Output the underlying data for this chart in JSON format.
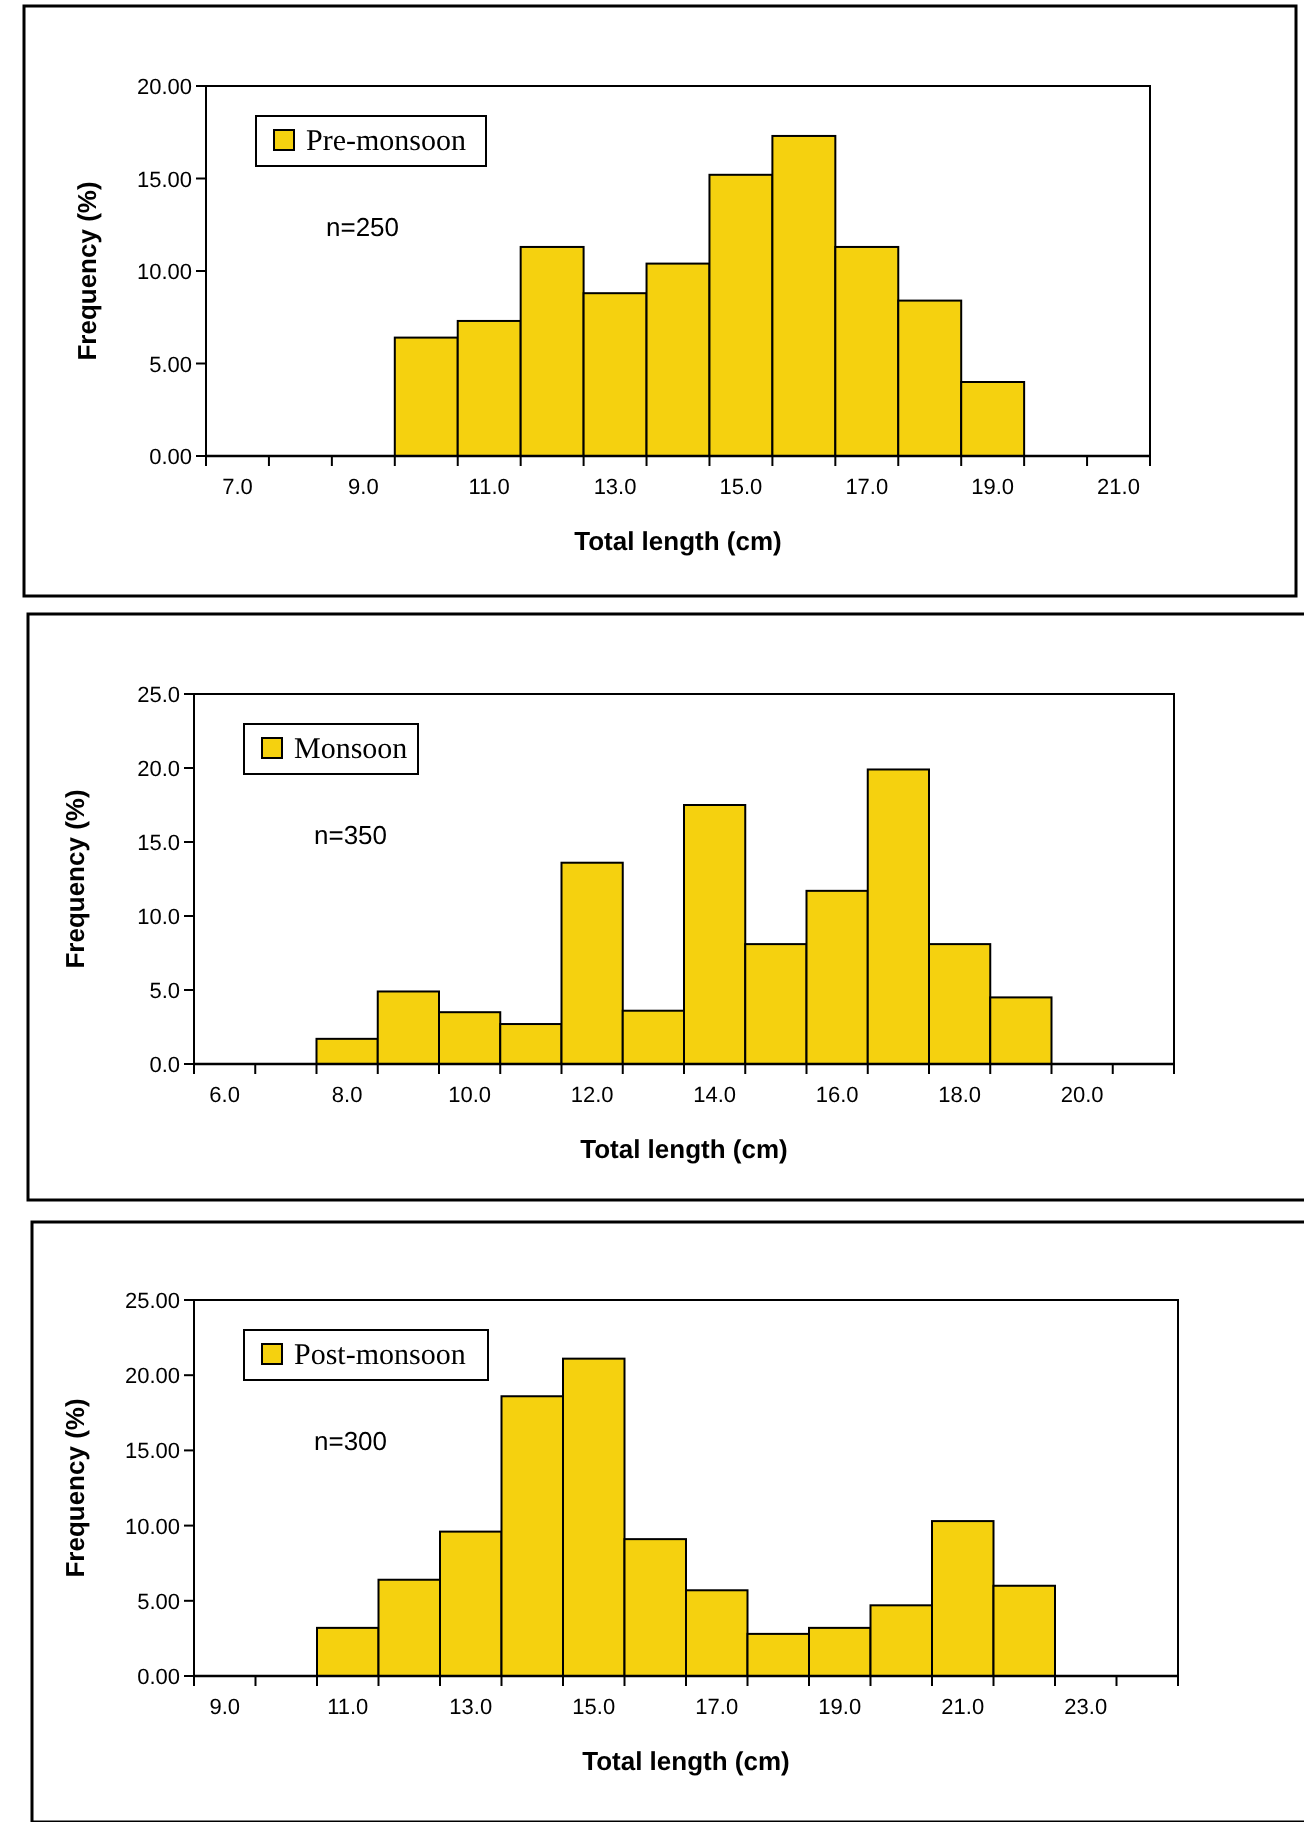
{
  "chart_data": [
    {
      "type": "bar",
      "xlabel": "Total length (cm)",
      "ylabel": "Frequency (%)",
      "annotations": [
        "n=250"
      ],
      "legend": "top left",
      "categories": [
        "7.0",
        null,
        "9.0",
        null,
        "11.0",
        null,
        "13.0",
        null,
        "15.0",
        null,
        "17.0",
        null,
        "19.0",
        null,
        "21.0"
      ],
      "series": [
        {
          "name": "Pre-monsoon",
          "color": "#f5d10f",
          "values": [
            null,
            null,
            null,
            6.4,
            7.3,
            11.3,
            8.8,
            10.4,
            15.2,
            17.3,
            11.3,
            8.4,
            4.0,
            null,
            null
          ]
        }
      ],
      "ylim": [
        0,
        20
      ],
      "yticks": [
        {
          "value": 0,
          "label": "0.00"
        },
        {
          "value": 5,
          "label": "5.00"
        },
        {
          "value": 10,
          "label": "10.00"
        },
        {
          "value": 15,
          "label": "15.00"
        },
        {
          "value": 20,
          "label": "20.00"
        }
      ]
    },
    {
      "type": "bar",
      "xlabel": "Total length (cm)",
      "ylabel": "Frequency (%)",
      "annotations": [
        "n=350"
      ],
      "legend": "top left",
      "categories": [
        "6.0",
        null,
        "8.0",
        null,
        "10.0",
        null,
        "12.0",
        null,
        "14.0",
        null,
        "16.0",
        null,
        "18.0",
        null,
        "20.0",
        null
      ],
      "series": [
        {
          "name": "Monsoon",
          "color": "#f5d10f",
          "values": [
            null,
            null,
            1.7,
            4.9,
            3.5,
            2.7,
            13.6,
            3.6,
            17.5,
            8.1,
            11.7,
            19.9,
            8.1,
            4.5,
            null,
            null
          ]
        }
      ],
      "ylim": [
        0,
        25
      ],
      "yticks": [
        {
          "value": 0,
          "label": "0.0"
        },
        {
          "value": 5,
          "label": "5.0"
        },
        {
          "value": 10,
          "label": "10.0"
        },
        {
          "value": 15,
          "label": "15.0"
        },
        {
          "value": 20,
          "label": "20.0"
        },
        {
          "value": 25,
          "label": "25.0"
        }
      ]
    },
    {
      "type": "bar",
      "xlabel": "Total length (cm)",
      "ylabel": "Frequency (%)",
      "annotations": [
        "n=300"
      ],
      "legend": "top left",
      "categories": [
        "9.0",
        null,
        "11.0",
        null,
        "13.0",
        null,
        "15.0",
        null,
        "17.0",
        null,
        "19.0",
        null,
        "21.0",
        null,
        "23.0",
        null
      ],
      "series": [
        {
          "name": "Post-monsoon",
          "color": "#f5d10f",
          "values": [
            null,
            null,
            3.2,
            6.4,
            9.6,
            18.6,
            21.1,
            9.1,
            5.7,
            2.8,
            3.2,
            4.7,
            10.3,
            6.0,
            null,
            null
          ]
        }
      ],
      "ylim": [
        0,
        25
      ],
      "yticks": [
        {
          "value": 0,
          "label": "0.00"
        },
        {
          "value": 5,
          "label": "5.00"
        },
        {
          "value": 10,
          "label": "10.00"
        },
        {
          "value": 15,
          "label": "15.00"
        },
        {
          "value": 20,
          "label": "20.00"
        },
        {
          "value": 25,
          "label": "25.00"
        }
      ]
    }
  ]
}
